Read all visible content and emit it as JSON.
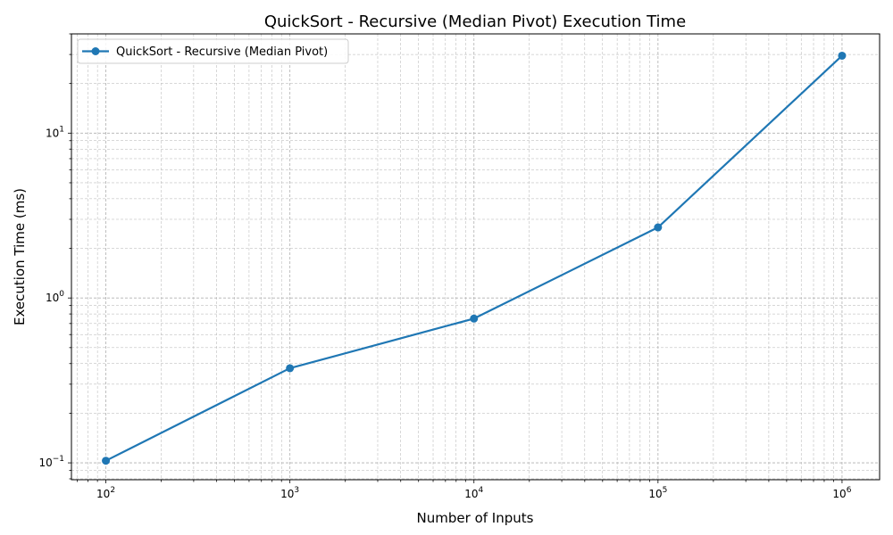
{
  "chart_data": {
    "type": "line",
    "title": "QuickSort - Recursive (Median Pivot) Execution Time",
    "xlabel": "Number of Inputs",
    "ylabel": "Execution Time (ms)",
    "x_scale": "log",
    "y_scale": "log",
    "xlim": [
      65,
      1600000
    ],
    "ylim": [
      0.079,
      40
    ],
    "x_ticks": [
      {
        "value": 100,
        "base": "10",
        "exp": "2"
      },
      {
        "value": 1000,
        "base": "10",
        "exp": "3"
      },
      {
        "value": 10000,
        "base": "10",
        "exp": "4"
      },
      {
        "value": 100000,
        "base": "10",
        "exp": "5"
      },
      {
        "value": 1000000,
        "base": "10",
        "exp": "6"
      }
    ],
    "y_ticks": [
      {
        "value": 0.1,
        "base": "10",
        "exp": "−1"
      },
      {
        "value": 1,
        "base": "10",
        "exp": "0"
      },
      {
        "value": 10,
        "base": "10",
        "exp": "1"
      }
    ],
    "grid": "major and minor, dashed",
    "legend_position": "top-left",
    "series": [
      {
        "name": "QuickSort - Recursive (Median Pivot)",
        "color": "#1f77b4",
        "marker": "circle",
        "x": [
          100,
          1000,
          10000,
          100000,
          1000000
        ],
        "values": [
          0.103,
          0.375,
          0.75,
          2.68,
          29.5
        ]
      }
    ]
  }
}
